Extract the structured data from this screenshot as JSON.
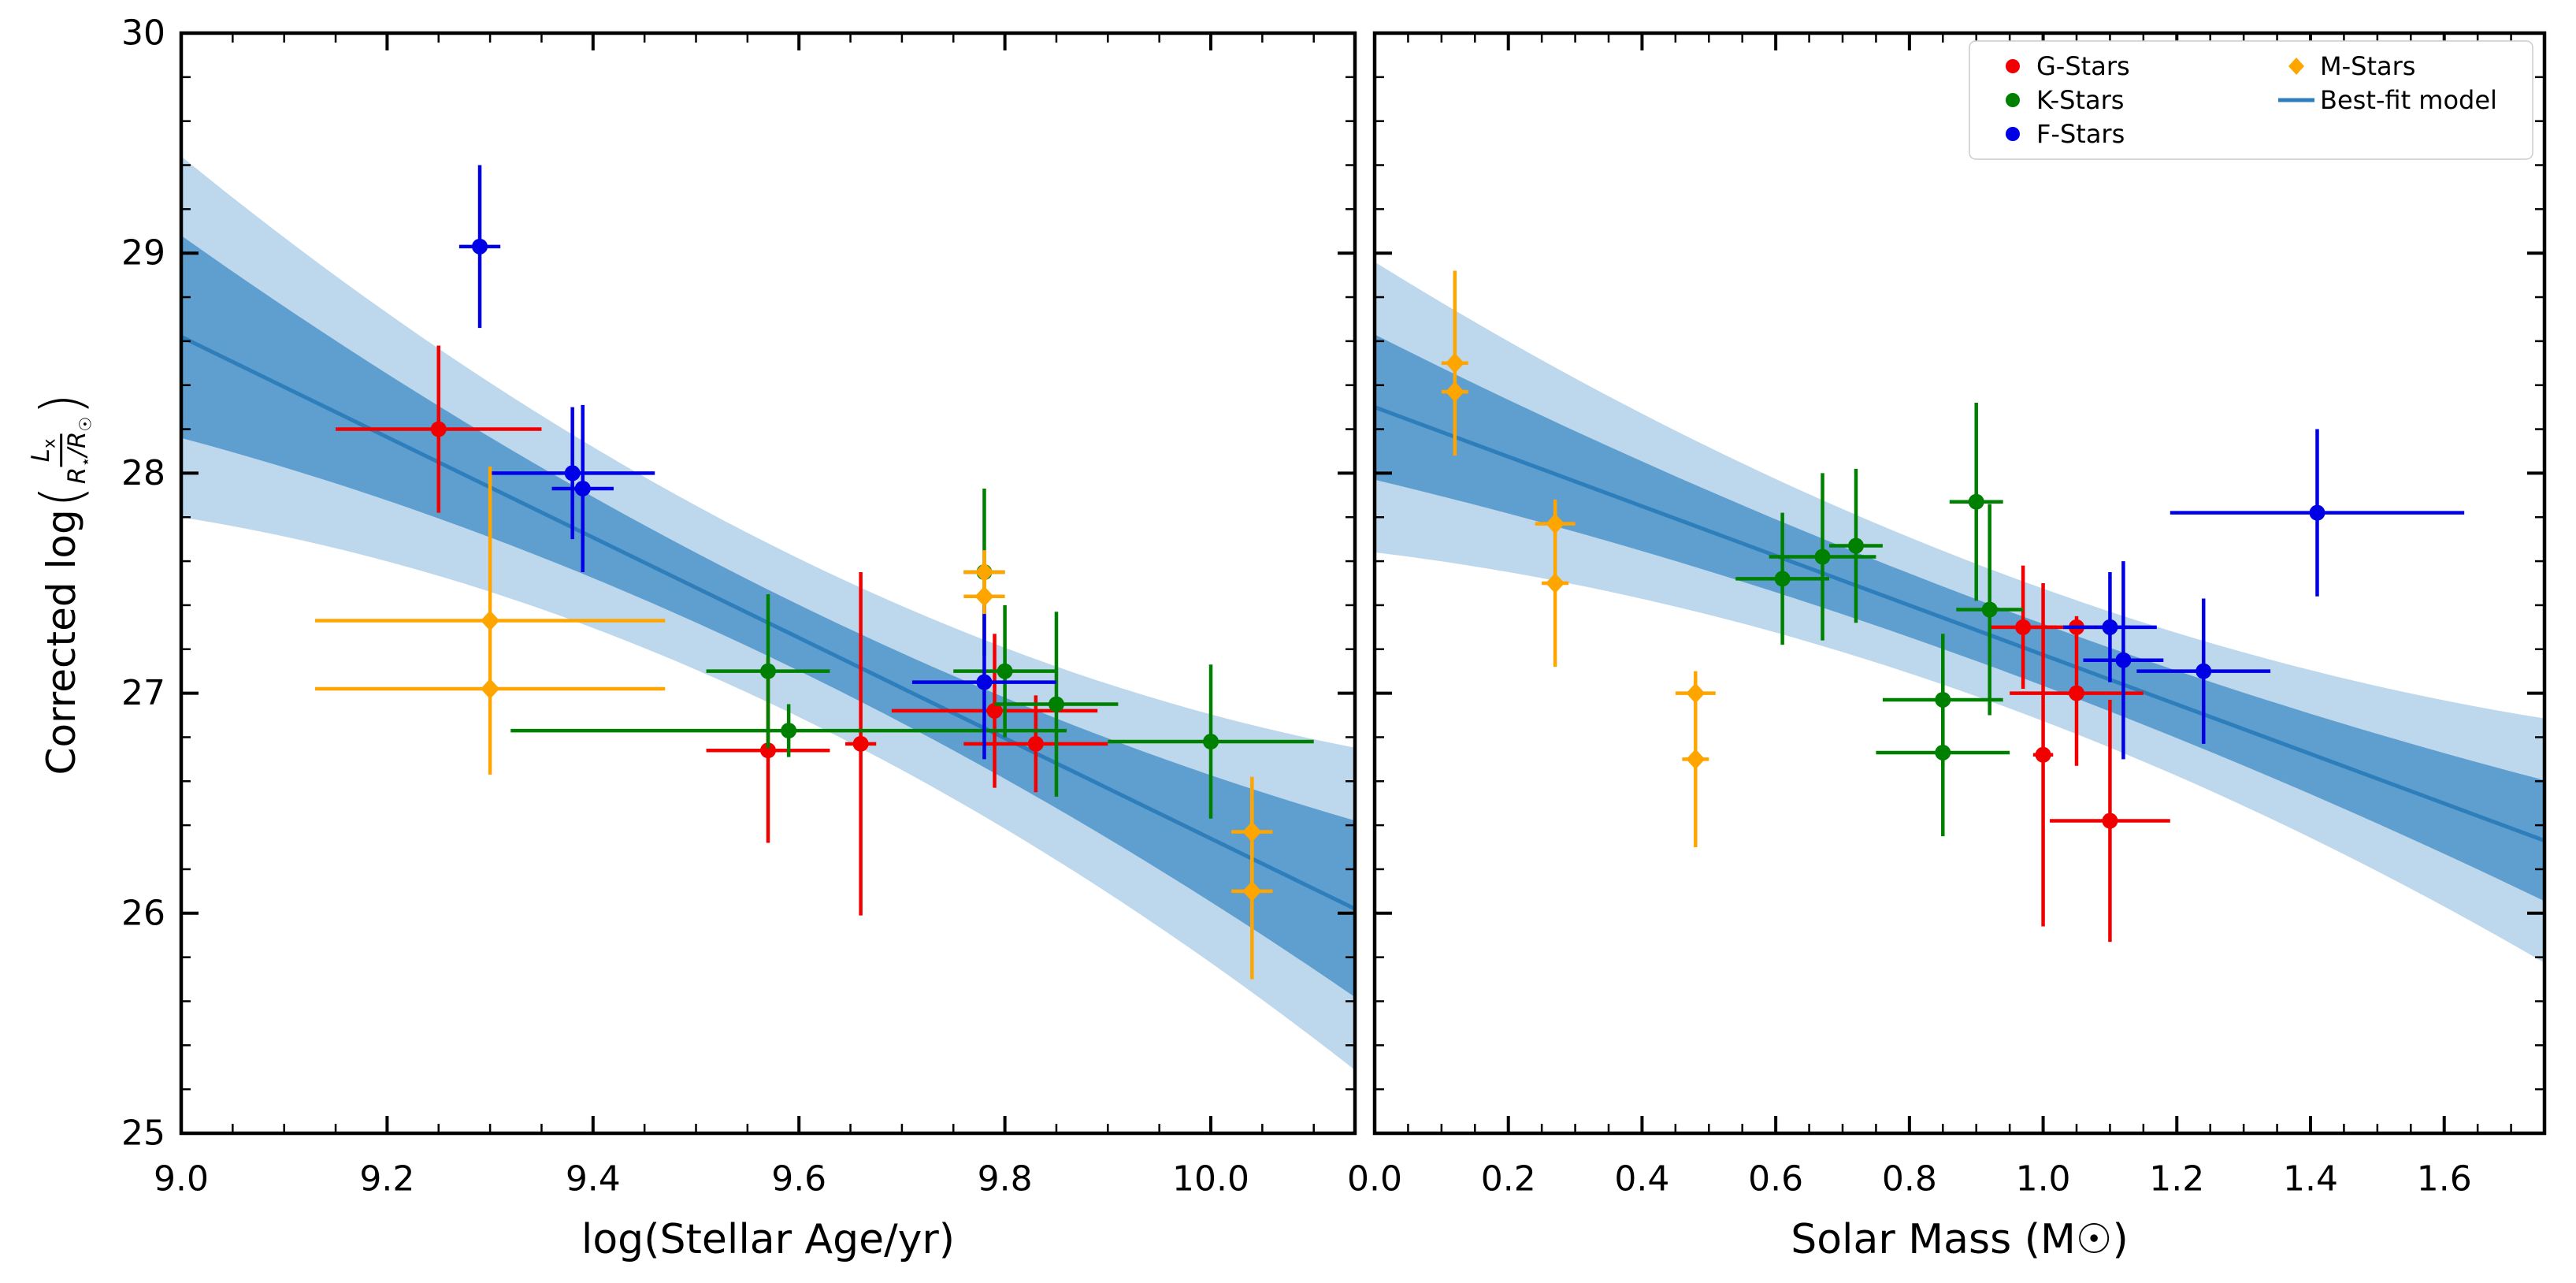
{
  "colors": {
    "g_stars": "#f20000",
    "k_stars": "#008000",
    "f_stars": "#0000e6",
    "m_stars": "#ffa500",
    "fit_line": "#2e7ebc",
    "band_inner": "#5f9fcf",
    "band_outer": "#bdd7ec",
    "axis": "#000000",
    "background": "#ffffff"
  },
  "ylabel": {
    "prefix": "Corrected log",
    "open_paren": "(",
    "close_paren": ")",
    "num_base": "L",
    "num_sub": "x",
    "den_base1": "R",
    "den_sub1": "⋆",
    "den_base2": "/R",
    "den_sub2": "☉"
  },
  "legend": {
    "entries": [
      {
        "label": "G-Stars",
        "color_key": "g_stars",
        "marker": "circle"
      },
      {
        "label": "K-Stars",
        "color_key": "k_stars",
        "marker": "circle"
      },
      {
        "label": "F-Stars",
        "color_key": "f_stars",
        "marker": "circle"
      },
      {
        "label": "M-Stars",
        "color_key": "m_stars",
        "marker": "diamond"
      }
    ],
    "line_entry": {
      "label": "Best-fit model",
      "color_key": "fit_line"
    }
  },
  "chart_data": [
    {
      "type": "scatter",
      "panel": "left",
      "xlabel": "log(Stellar Age/yr)",
      "xlim": [
        9.0,
        10.14
      ],
      "ylim": [
        25,
        30
      ],
      "xticks": [
        9.0,
        9.2,
        9.4,
        9.6,
        9.8,
        10.0
      ],
      "xtick_labels": [
        "9.0",
        "9.2",
        "9.4",
        "9.6",
        "9.8",
        "10.0"
      ],
      "yticks": [
        25,
        26,
        27,
        28,
        29,
        30
      ],
      "ytick_labels": [
        "25",
        "26",
        "27",
        "28",
        "29",
        "30"
      ],
      "minor_x_step": 0.05,
      "minor_y_step": 0.2,
      "show_y_tick_labels": true,
      "show_legend": false,
      "fit": {
        "x": [
          9.0,
          10.14
        ],
        "y": [
          28.62,
          26.02
        ]
      },
      "bands": {
        "pivot": 9.6,
        "inner_hw": [
          0.15,
          0.46
        ],
        "outer_hw": [
          0.36,
          0.82
        ]
      },
      "series": [
        {
          "name": "G-Stars",
          "color_key": "g_stars",
          "marker": "circle",
          "points": [
            {
              "x": 9.25,
              "y": 28.2,
              "xerr": 0.1,
              "yerr": 0.38
            },
            {
              "x": 9.57,
              "y": 26.74,
              "xerr": 0.06,
              "yerr": 0.42
            },
            {
              "x": 9.66,
              "y": 26.77,
              "xerr": 0.015,
              "yerr": 0.78
            },
            {
              "x": 9.79,
              "y": 26.92,
              "xerr": 0.1,
              "yerr": 0.35
            },
            {
              "x": 9.83,
              "y": 26.77,
              "xerr": 0.07,
              "yerr": 0.22
            }
          ]
        },
        {
          "name": "K-Stars",
          "color_key": "k_stars",
          "marker": "circle",
          "points": [
            {
              "x": 9.57,
              "y": 27.1,
              "xerr": 0.06,
              "yerr": 0.35
            },
            {
              "x": 9.59,
              "y": 26.83,
              "xerr": 0.27,
              "yerr": 0.12
            },
            {
              "x": 9.78,
              "y": 27.55,
              "xerr": 0.02,
              "yerr": 0.38
            },
            {
              "x": 9.8,
              "y": 27.1,
              "xerr": 0.05,
              "yerr": 0.3
            },
            {
              "x": 9.85,
              "y": 26.95,
              "xerr": 0.06,
              "yerr": 0.42
            },
            {
              "x": 10.0,
              "y": 26.78,
              "xerr": 0.1,
              "yerr": 0.35
            }
          ]
        },
        {
          "name": "F-Stars",
          "color_key": "f_stars",
          "marker": "circle",
          "points": [
            {
              "x": 9.29,
              "y": 29.03,
              "xerr": 0.02,
              "yerr": 0.37
            },
            {
              "x": 9.38,
              "y": 28.0,
              "xerr": 0.08,
              "yerr": 0.3
            },
            {
              "x": 9.39,
              "y": 27.93,
              "xerr": 0.03,
              "yerr": 0.38
            },
            {
              "x": 9.78,
              "y": 27.05,
              "xerr": 0.07,
              "yerr": 0.35
            }
          ]
        },
        {
          "name": "M-Stars",
          "color_key": "m_stars",
          "marker": "diamond",
          "points": [
            {
              "x": 9.3,
              "y": 27.33,
              "xerr": 0.17,
              "yerr": 0.7
            },
            {
              "x": 9.3,
              "y": 27.02,
              "xerr": 0.17,
              "yerr": 0.04
            },
            {
              "x": 9.78,
              "y": 27.55,
              "xerr": 0.02,
              "yerr": 0.1
            },
            {
              "x": 9.78,
              "y": 27.44,
              "xerr": 0.02,
              "yerr": 0.08
            },
            {
              "x": 10.04,
              "y": 26.37,
              "xerr": 0.02,
              "yerr": 0.25
            },
            {
              "x": 10.04,
              "y": 26.1,
              "xerr": 0.02,
              "yerr": 0.4
            }
          ]
        }
      ]
    },
    {
      "type": "scatter",
      "panel": "right",
      "xlabel": "Solar Mass (M☉)",
      "xlim": [
        0.0,
        1.75
      ],
      "ylim": [
        25,
        30
      ],
      "xticks": [
        0.0,
        0.2,
        0.4,
        0.6,
        0.8,
        1.0,
        1.2,
        1.4,
        1.6
      ],
      "xtick_labels": [
        "0.0",
        "0.2",
        "0.4",
        "0.6",
        "0.8",
        "1.0",
        "1.2",
        "1.4",
        "1.6"
      ],
      "yticks": [
        25,
        26,
        27,
        28,
        29,
        30
      ],
      "ytick_labels": [
        "25",
        "26",
        "27",
        "28",
        "29",
        "30"
      ],
      "minor_x_step": 0.05,
      "minor_y_step": 0.2,
      "show_y_tick_labels": false,
      "show_legend": true,
      "fit": {
        "x": [
          0.0,
          1.75
        ],
        "y": [
          28.3,
          26.33
        ]
      },
      "bands": {
        "pivot": 0.95,
        "inner_hw": [
          0.14,
          0.33
        ],
        "outer_hw": [
          0.3,
          0.66
        ]
      },
      "series": [
        {
          "name": "G-Stars",
          "color_key": "g_stars",
          "marker": "circle",
          "points": [
            {
              "x": 0.97,
              "y": 27.3,
              "xerr": 0.05,
              "yerr": 0.28
            },
            {
              "x": 1.0,
              "y": 26.72,
              "xerr": 0.015,
              "yerr": 0.78
            },
            {
              "x": 1.05,
              "y": 27.3,
              "xerr": 0.08,
              "yerr": 0.05
            },
            {
              "x": 1.05,
              "y": 27.0,
              "xerr": 0.1,
              "yerr": 0.33
            },
            {
              "x": 1.1,
              "y": 26.42,
              "xerr": 0.09,
              "yerr": 0.55
            }
          ]
        },
        {
          "name": "K-Stars",
          "color_key": "k_stars",
          "marker": "circle",
          "points": [
            {
              "x": 0.61,
              "y": 27.52,
              "xerr": 0.07,
              "yerr": 0.3
            },
            {
              "x": 0.67,
              "y": 27.62,
              "xerr": 0.08,
              "yerr": 0.38
            },
            {
              "x": 0.72,
              "y": 27.67,
              "xerr": 0.04,
              "yerr": 0.35
            },
            {
              "x": 0.85,
              "y": 26.97,
              "xerr": 0.09,
              "yerr": 0.3
            },
            {
              "x": 0.85,
              "y": 26.73,
              "xerr": 0.1,
              "yerr": 0.38
            },
            {
              "x": 0.9,
              "y": 27.87,
              "xerr": 0.04,
              "yerr": 0.45
            },
            {
              "x": 0.92,
              "y": 27.38,
              "xerr": 0.05,
              "yerr": 0.48
            }
          ]
        },
        {
          "name": "F-Stars",
          "color_key": "f_stars",
          "marker": "circle",
          "points": [
            {
              "x": 1.1,
              "y": 27.3,
              "xerr": 0.07,
              "yerr": 0.25
            },
            {
              "x": 1.12,
              "y": 27.15,
              "xerr": 0.06,
              "yerr": 0.45
            },
            {
              "x": 1.24,
              "y": 27.1,
              "xerr": 0.1,
              "yerr": 0.33
            },
            {
              "x": 1.41,
              "y": 27.82,
              "xerr": 0.22,
              "yerr": 0.38
            }
          ]
        },
        {
          "name": "M-Stars",
          "color_key": "m_stars",
          "marker": "diamond",
          "points": [
            {
              "x": 0.12,
              "y": 28.5,
              "xerr": 0.02,
              "yerr": 0.42
            },
            {
              "x": 0.12,
              "y": 28.37,
              "xerr": 0.02,
              "yerr": 0.05
            },
            {
              "x": 0.27,
              "y": 27.77,
              "xerr": 0.03,
              "yerr": 0.05
            },
            {
              "x": 0.27,
              "y": 27.5,
              "xerr": 0.02,
              "yerr": 0.38
            },
            {
              "x": 0.48,
              "y": 27.0,
              "xerr": 0.03,
              "yerr": 0.05
            },
            {
              "x": 0.48,
              "y": 26.7,
              "xerr": 0.02,
              "yerr": 0.4
            }
          ]
        }
      ]
    }
  ]
}
